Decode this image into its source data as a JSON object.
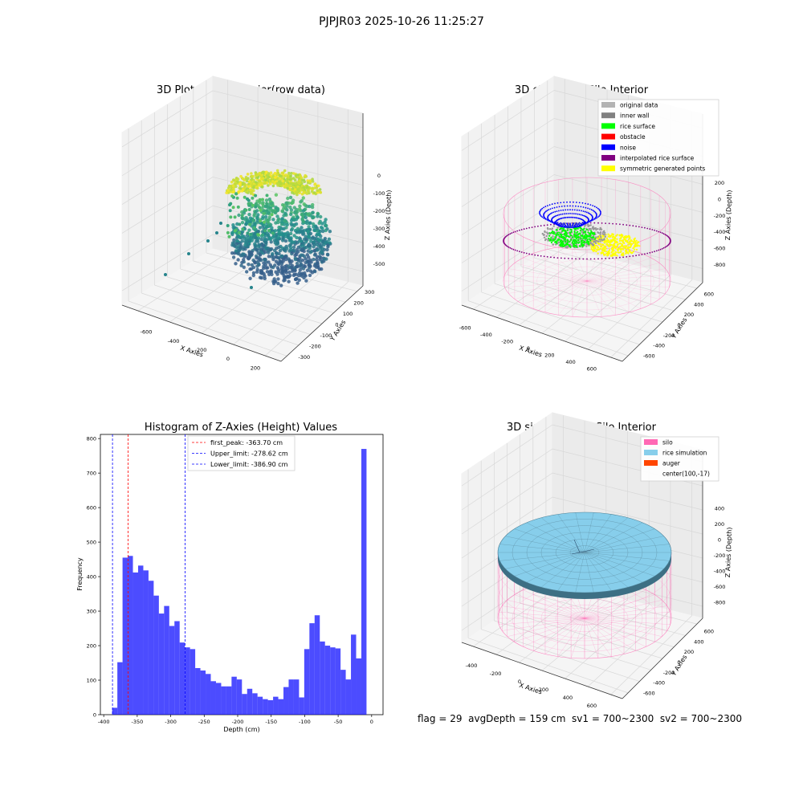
{
  "suptitle": "PJPJR03 2025-10-26 11:25:27",
  "panels": {
    "raw": {
      "title": "3D Plot of Silo Interior(row data)",
      "xlabel": "X Axies",
      "ylabel": "Y Axies",
      "zlabel": "Z Axies (Depth)",
      "xticks": [
        "-600",
        "-400",
        "-200",
        "0",
        "200"
      ],
      "yticks": [
        "-300",
        "-200",
        "-100",
        "0",
        "100",
        "200",
        "300"
      ],
      "zticks": [
        "0",
        "-100",
        "-200",
        "-300",
        "-400",
        "-500"
      ]
    },
    "classify": {
      "title": "3D classify of Silo Interior",
      "xlabel": "X Axies",
      "ylabel": "Y Axies",
      "zlabel": "Z Axies (Depth)",
      "xticks": [
        "-600",
        "-400",
        "-200",
        "0",
        "200",
        "400",
        "600"
      ],
      "yticks": [
        "-600",
        "-400",
        "-200",
        "0",
        "200",
        "400",
        "600"
      ],
      "zticks": [
        "200",
        "0",
        "-200",
        "-400",
        "-600",
        "-800"
      ],
      "legend": [
        {
          "label": "original data",
          "color": "#b3b3b3"
        },
        {
          "label": "inner wall",
          "color": "#808080"
        },
        {
          "label": "rice surface",
          "color": "#00ff00"
        },
        {
          "label": "obstacle",
          "color": "#ff0000"
        },
        {
          "label": "noise",
          "color": "#0000ff"
        },
        {
          "label": "interpolated rice surface",
          "color": "#800080"
        },
        {
          "label": "symmetric generated points",
          "color": "#ffff00"
        }
      ]
    },
    "simulation": {
      "title": "3D simulation of Silo Interior",
      "xlabel": "X Axies",
      "ylabel": "Y Axies",
      "zlabel": "Z Axies (Depth)",
      "xticks": [
        "-400",
        "-200",
        "0",
        "200",
        "400",
        "600"
      ],
      "yticks": [
        "-600",
        "-400",
        "-200",
        "0",
        "200",
        "400",
        "600"
      ],
      "zticks": [
        "400",
        "200",
        "0",
        "-200",
        "-400",
        "-600",
        "-800"
      ],
      "legend": [
        {
          "label": "silo",
          "color": "#ff69b4"
        },
        {
          "label": "rice simulation",
          "color": "#87ceeb"
        },
        {
          "label": "auger",
          "color": "#ff4500"
        },
        {
          "label": "center(100,-17)",
          "color": ""
        }
      ]
    }
  },
  "chart_data": {
    "type": "bar",
    "title": "Histogram of Z-Axies (Height) Values",
    "xlabel": "Depth (cm)",
    "ylabel": "Frequency",
    "xlim": [
      -405,
      17
    ],
    "ylim": [
      0,
      812
    ],
    "xticks": [
      -400,
      -350,
      -300,
      -250,
      -200,
      -150,
      -100,
      -50,
      0
    ],
    "yticks": [
      0,
      100,
      200,
      300,
      400,
      500,
      600,
      700,
      800
    ],
    "bar_color": "#0000ff",
    "bin_start": -387.4,
    "bin_width": 7.75,
    "values": [
      20,
      152,
      455,
      460,
      412,
      432,
      418,
      388,
      345,
      293,
      315,
      257,
      271,
      209,
      195,
      190,
      135,
      128,
      118,
      97,
      92,
      82,
      82,
      110,
      102,
      60,
      75,
      62,
      52,
      45,
      42,
      52,
      45,
      80,
      102,
      102,
      50,
      190,
      265,
      288,
      212,
      200,
      195,
      192,
      130,
      102,
      232,
      163,
      770
    ],
    "lines": [
      {
        "label": "first_peak: -363.70 cm",
        "x": -363.7,
        "color": "#ff0000"
      },
      {
        "label": "Upper_limit: -278.62 cm",
        "x": -278.62,
        "color": "#0000ff"
      },
      {
        "label": "Lower_limit: -386.90 cm",
        "x": -386.9,
        "color": "#0000ff"
      }
    ]
  },
  "footer": "flag = 29  avgDepth = 159 cm  sv1 = 700~2300  sv2 = 700~2300"
}
